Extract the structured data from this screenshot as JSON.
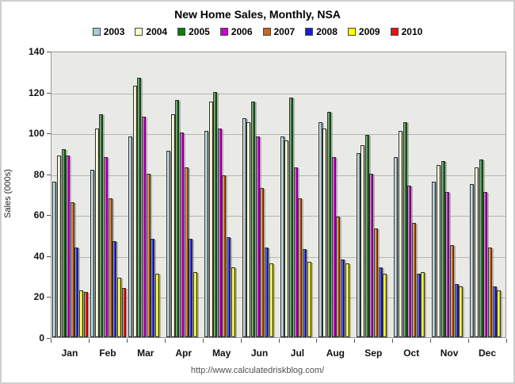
{
  "chart_data": {
    "type": "bar",
    "title": "New Home Sales, Monthly, NSA",
    "ylabel": "Sales (000s)",
    "xlabel": "",
    "ylim": [
      0,
      140
    ],
    "ytick_interval": 20,
    "yticks": [
      0,
      20,
      40,
      60,
      80,
      100,
      120,
      140
    ],
    "grid": true,
    "legend_position": "top-center",
    "plot_background": "#e9e9e6",
    "gridline_color": "#b5b5b1",
    "categories": [
      "Jan",
      "Feb",
      "Mar",
      "Apr",
      "May",
      "Jun",
      "Jul",
      "Aug",
      "Sep",
      "Oct",
      "Nov",
      "Dec"
    ],
    "series": [
      {
        "name": "2003",
        "color": "#A8CBD2",
        "values": [
          76,
          82,
          98,
          91,
          101,
          107,
          98,
          105,
          90,
          88,
          76,
          75
        ]
      },
      {
        "name": "2004",
        "color": "#FFFFCC",
        "values": [
          89,
          102,
          123,
          109,
          115,
          105,
          96,
          102,
          94,
          101,
          84,
          83
        ]
      },
      {
        "name": "2005",
        "color": "#0F7A12",
        "values": [
          92,
          109,
          127,
          116,
          120,
          115,
          117,
          110,
          99,
          105,
          86,
          87
        ]
      },
      {
        "name": "2006",
        "color": "#CC00CC",
        "values": [
          89,
          88,
          108,
          100,
          102,
          98,
          83,
          88,
          80,
          74,
          71,
          71
        ]
      },
      {
        "name": "2007",
        "color": "#C8661C",
        "values": [
          66,
          68,
          80,
          83,
          79,
          73,
          68,
          59,
          53,
          56,
          45,
          44
        ]
      },
      {
        "name": "2008",
        "color": "#1C1FCC",
        "values": [
          44,
          47,
          48,
          48,
          49,
          44,
          43,
          38,
          34,
          31,
          26,
          25
        ]
      },
      {
        "name": "2009",
        "color": "#FFFF00",
        "values": [
          23,
          29,
          31,
          32,
          34,
          36,
          37,
          36,
          31,
          32,
          25,
          23
        ]
      },
      {
        "name": "2010",
        "color": "#EE1111",
        "values": [
          22,
          24,
          null,
          null,
          null,
          null,
          null,
          null,
          null,
          null,
          null,
          null
        ]
      }
    ]
  },
  "footer": {
    "url_text": "http://www.calculatedriskblog.com/"
  }
}
